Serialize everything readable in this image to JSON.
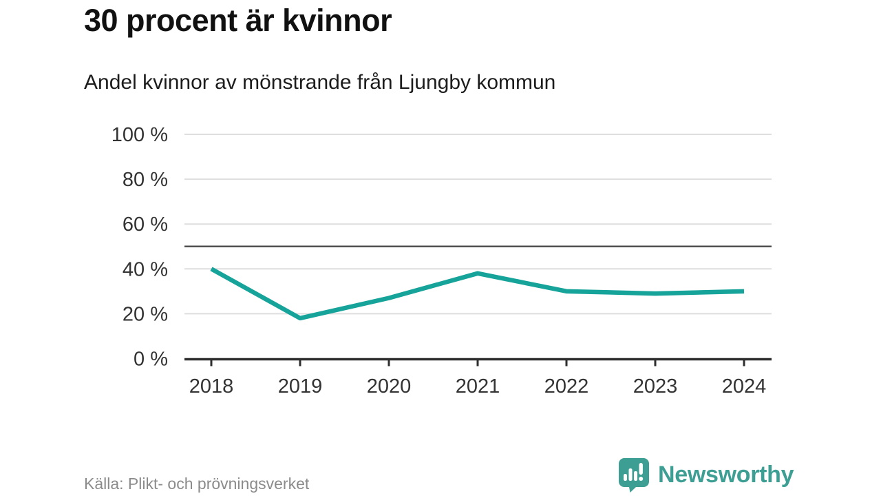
{
  "title": "30 procent är kvinnor",
  "subtitle": "Andel kvinnor av mönstrande från Ljungby kommun",
  "source": "Källa: Plikt- och prövningsverket",
  "branding": {
    "name": "Newsworthy",
    "icon": "speech-bubble-barchart-exclamation-icon"
  },
  "colors": {
    "title_text": "#111111",
    "subtitle_text": "#1c1c1c",
    "axis_text": "#333333",
    "grid": "#dedede",
    "axis": "#2e2e2e",
    "reference_line": "#4f4f4f",
    "series_line": "#15a39a",
    "brand_teal": "#3d9f94",
    "source_text": "#8b8b8b"
  },
  "chart_data": {
    "type": "line",
    "title": "30 procent är kvinnor",
    "subtitle": "Andel kvinnor av mönstrande från Ljungby kommun",
    "categories": [
      "2018",
      "2019",
      "2020",
      "2021",
      "2022",
      "2023",
      "2024"
    ],
    "series": [
      {
        "name": "Andel kvinnor av mönstrande",
        "values": [
          40,
          18,
          27,
          38,
          30,
          29,
          30
        ]
      }
    ],
    "unit": "%",
    "ylim": [
      0,
      100
    ],
    "yticks": [
      {
        "value": 0,
        "label": "0 %"
      },
      {
        "value": 20,
        "label": "20 %"
      },
      {
        "value": 40,
        "label": "40 %"
      },
      {
        "value": 60,
        "label": "60 %"
      },
      {
        "value": 80,
        "label": "80 %"
      },
      {
        "value": 100,
        "label": "100 %"
      }
    ],
    "reference_line_value": 50,
    "grid": "horizontal",
    "legend": "none",
    "source": "Källa: Plikt- och prövningsverket"
  }
}
